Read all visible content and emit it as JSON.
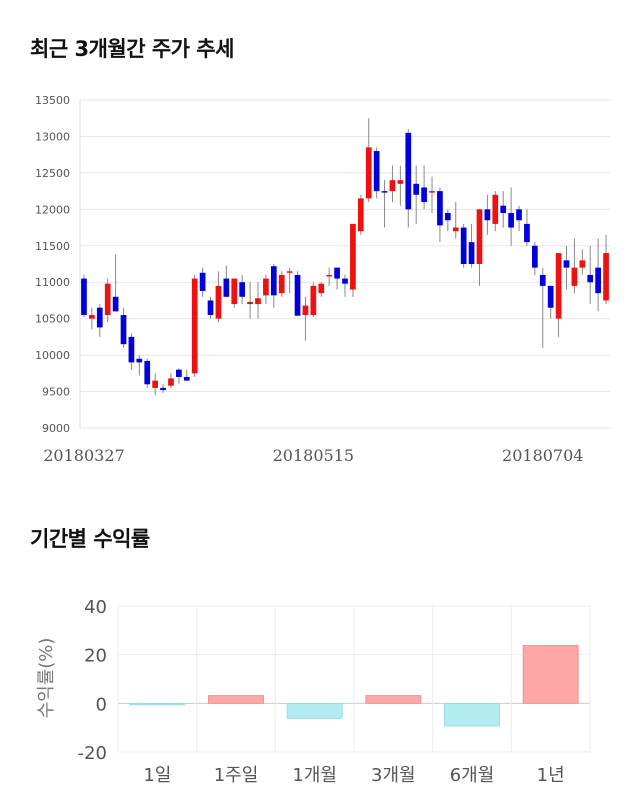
{
  "sections": {
    "price_title": "최근 3개월간 주가 추세",
    "returns_title": "기간별 수익률"
  },
  "chart_data": [
    {
      "type": "candlestick",
      "title": "최근 3개월간 주가 추세",
      "ylim": [
        9000,
        13500
      ],
      "yticks": [
        9000,
        9500,
        10000,
        10500,
        11000,
        11500,
        12000,
        12500,
        13000,
        13500
      ],
      "x_tick_labels": [
        "20180327",
        "20180515",
        "20180704"
      ],
      "x_tick_index": [
        0,
        29,
        58
      ],
      "grid": true,
      "colors": {
        "up": "#ee1111",
        "down": "#0000dd",
        "wick": "#888888"
      },
      "candles": [
        [
          11050,
          11100,
          10520,
          10550
        ],
        [
          10500,
          10650,
          10350,
          10550
        ],
        [
          10650,
          10700,
          10250,
          10380
        ],
        [
          10550,
          11050,
          10450,
          10980
        ],
        [
          10800,
          11380,
          10600,
          10600
        ],
        [
          10550,
          10650,
          10100,
          10150
        ],
        [
          10250,
          10300,
          9800,
          9900
        ],
        [
          9950,
          10000,
          9720,
          9900
        ],
        [
          9920,
          9950,
          9550,
          9600
        ],
        [
          9550,
          9750,
          9450,
          9650
        ],
        [
          9550,
          9600,
          9480,
          9520
        ],
        [
          9580,
          9750,
          9550,
          9680
        ],
        [
          9800,
          9820,
          9600,
          9700
        ],
        [
          9700,
          9800,
          9650,
          9650
        ],
        [
          9750,
          11100,
          9700,
          11050
        ],
        [
          11130,
          11200,
          10800,
          10880
        ],
        [
          10750,
          10800,
          10500,
          10550
        ],
        [
          10500,
          11150,
          10450,
          10950
        ],
        [
          11050,
          11230,
          10800,
          10800
        ],
        [
          10700,
          11050,
          10650,
          11050
        ],
        [
          11000,
          11100,
          10700,
          10800
        ],
        [
          10700,
          11000,
          10500,
          10730
        ],
        [
          10700,
          11000,
          10500,
          10780
        ],
        [
          10820,
          11100,
          10700,
          11050
        ],
        [
          11220,
          11250,
          10650,
          10820
        ],
        [
          10850,
          11150,
          10800,
          11100
        ],
        [
          11130,
          11200,
          10850,
          11150
        ],
        [
          11100,
          11150,
          10550,
          10540
        ],
        [
          10550,
          10800,
          10200,
          10680
        ],
        [
          10550,
          11000,
          10520,
          10950
        ],
        [
          10850,
          11000,
          10800,
          10980
        ],
        [
          11100,
          11200,
          10950,
          11100
        ],
        [
          11200,
          11200,
          10900,
          11050
        ],
        [
          11050,
          11100,
          10800,
          10980
        ],
        [
          10900,
          11800,
          10800,
          11800
        ],
        [
          11700,
          12200,
          11650,
          12150
        ],
        [
          12150,
          13250,
          12100,
          12850
        ],
        [
          12800,
          12850,
          12150,
          12250
        ],
        [
          12250,
          12400,
          11750,
          12230
        ],
        [
          12250,
          12600,
          12100,
          12400
        ],
        [
          12350,
          12600,
          12050,
          12400
        ],
        [
          13050,
          13100,
          11750,
          12000
        ],
        [
          12350,
          12600,
          11800,
          12200
        ],
        [
          12300,
          12600,
          12000,
          12100
        ],
        [
          12250,
          12450,
          11950,
          12250
        ],
        [
          12250,
          12300,
          11550,
          11780
        ],
        [
          11950,
          12000,
          11700,
          11850
        ],
        [
          11700,
          12100,
          11600,
          11750
        ],
        [
          11750,
          11800,
          11200,
          11250
        ],
        [
          11550,
          11800,
          11200,
          11250
        ],
        [
          11250,
          12000,
          10950,
          12000
        ],
        [
          12000,
          12200,
          11650,
          11850
        ],
        [
          11800,
          12250,
          11700,
          12200
        ],
        [
          12050,
          12250,
          11750,
          11950
        ],
        [
          11950,
          12300,
          11500,
          11750
        ],
        [
          12000,
          12050,
          11700,
          11850
        ],
        [
          11800,
          12000,
          11500,
          11550
        ],
        [
          11500,
          11550,
          11100,
          11200
        ],
        [
          11100,
          11200,
          10100,
          10950
        ],
        [
          10950,
          10950,
          10500,
          10650
        ],
        [
          10500,
          11400,
          10250,
          11400
        ],
        [
          11300,
          11500,
          10900,
          11200
        ],
        [
          10950,
          11600,
          10850,
          11200
        ],
        [
          11200,
          11450,
          11100,
          11300
        ],
        [
          11100,
          11500,
          10700,
          11000
        ],
        [
          11200,
          11600,
          10600,
          10850
        ],
        [
          10750,
          11650,
          10700,
          11400
        ]
      ]
    },
    {
      "type": "bar",
      "title": "기간별 수익률",
      "ylabel": "수익률(%)",
      "categories": [
        "1일",
        "1주일",
        "1개월",
        "3개월",
        "6개월",
        "1년"
      ],
      "values": [
        -0.5,
        3.2,
        -6.2,
        3.2,
        -9.3,
        23.8
      ],
      "ylim": [
        -20,
        40
      ],
      "yticks": [
        -20,
        0,
        20,
        40
      ],
      "grid": true,
      "colors": {
        "positive": "#ffa6a6",
        "negative": "#b3ebf2"
      }
    }
  ]
}
